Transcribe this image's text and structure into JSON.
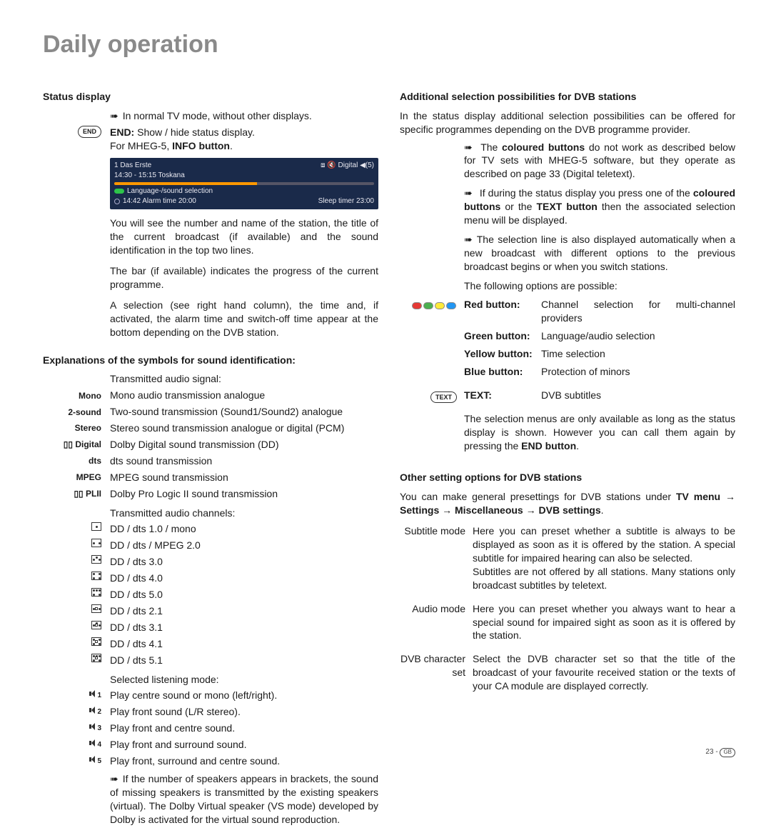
{
  "page": {
    "title": "Daily operation",
    "footer_page": "23 -",
    "footer_region": "GB"
  },
  "left": {
    "status_head": "Status display",
    "status_intro": "In normal TV mode, without other displays.",
    "end_label": "END",
    "end_desc_prefix": "END:",
    "end_desc": "Show / hide status display.",
    "end_mheg": "For MHEG-5,",
    "end_mheg_bold": "INFO button",
    "osd": {
      "ch": "1  Das Erste",
      "right_info": "⧈ 🔇 Digital  ◀(5)",
      "time_prog": "14:30 - 15:15    Toskana",
      "lang": "Language-/sound selection",
      "time": "14:42    Alarm time 20:00",
      "sleep": "Sleep timer 23:00"
    },
    "status_p1": "You will see the number and name of the station, the title of the current broadcast (if available) and the sound identification in the top two lines.",
    "status_p2": "The bar (if available) indicates the progress of the current programme.",
    "status_p3": "A selection (see right hand column), the time and, if activated, the alarm time and switch-off time appear at the bottom depending on the DVB station.",
    "symbols_head": "Explanations of the symbols for sound identification:",
    "audio_signal_label": "Transmitted audio signal:",
    "signals": [
      {
        "k": "Mono",
        "v": "Mono audio transmission analogue"
      },
      {
        "k": "2-sound",
        "v": "Two-sound transmission (Sound1/Sound2) analogue"
      },
      {
        "k": "Stereo",
        "v": "Stereo sound transmission analogue or digital (PCM)"
      },
      {
        "k": "▯▯ Digital",
        "v": "Dolby Digital sound transmission (DD)"
      },
      {
        "k": "dts",
        "v": "dts sound transmission"
      },
      {
        "k": "MPEG",
        "v": "MPEG sound transmission"
      },
      {
        "k": "▯▯ PLII",
        "v": "Dolby Pro Logic II sound transmission"
      }
    ],
    "audio_channels_label": "Transmitted audio channels:",
    "channels": [
      "DD / dts 1.0 / mono",
      "DD / dts / MPEG 2.0",
      "DD / dts 3.0",
      "DD / dts 4.0",
      "DD / dts 5.0",
      "DD / dts 2.1",
      "DD / dts 3.1",
      "DD / dts 4.1",
      "DD / dts 5.1"
    ],
    "listen_label": "Selected listening mode:",
    "modes": [
      {
        "n": "1",
        "v": "Play centre sound or mono (left/right)."
      },
      {
        "n": "2",
        "v": "Play front sound (L/R stereo)."
      },
      {
        "n": "3",
        "v": "Play front and centre sound."
      },
      {
        "n": "4",
        "v": "Play front and surround sound."
      },
      {
        "n": "5",
        "v": "Play front, surround and centre sound."
      }
    ],
    "note": "If the number of speakers appears in brackets, the sound of missing speakers is transmitted by the existing speakers (virtual). The Dolby Virtual speaker (VS mode) developed by Dolby is activated for the virtual sound reproduction."
  },
  "right": {
    "add_head": "Additional selection possibilities for DVB stations",
    "add_intro": "In the status display additional selection possibilities can be offered for specific programmes depending on the DVB programme provider.",
    "b1_pre": "The ",
    "b1_bold": "coloured buttons",
    "b1_post": " do not work as described below for TV sets with MHEG-5 software, but they operate as described on page 33 (Digital teletext).",
    "b2_pre": "If during the status display you press one of the ",
    "b2_bold1": "coloured buttons",
    "b2_mid": " or the ",
    "b2_bold2": "TEXT button",
    "b2_post": " then the associated selection menu will be displayed.",
    "b3": "The selection line is also displayed automatically when a new broadcast with different options to the previous broadcast begins or when you switch stations.",
    "following": "The following options are possible:",
    "buttons": [
      {
        "k": "Red button:",
        "v": "Channel selection for multi-channel providers"
      },
      {
        "k": "Green button:",
        "v": "Language/audio selection"
      },
      {
        "k": "Yellow button:",
        "v": "Time selection"
      },
      {
        "k": "Blue button:",
        "v": "Protection of minors"
      }
    ],
    "text_label": "TEXT",
    "text_k": "TEXT:",
    "text_v": "DVB subtitles",
    "sel_note_pre": "The selection menus are only available as long as the status display is shown. However you can call them again by pressing the ",
    "sel_note_bold": "END button",
    "other_head": "Other setting options for DVB stations",
    "other_intro_pre": "You can make general presettings for DVB stations under ",
    "other_path": "TV menu → Settings → Miscellaneous → DVB settings",
    "dvb": [
      {
        "k": "Subtitle mode",
        "v": "Here you can preset whether a subtitle is always to be displayed as soon as it is offered by the station. A special subtitle for impaired hearing can also be selected.\nSubtitles are not offered by all stations. Many stations only broadcast subtitles by teletext."
      },
      {
        "k": "Audio mode",
        "v": "Here you can preset whether you always want to hear a special sound for impaired sight as soon as it is offered by the station."
      },
      {
        "k": "DVB character set",
        "v": "Select the DVB character set so that the title of the broadcast of your favourite received station or the texts of your CA module are displayed correctly."
      }
    ]
  }
}
